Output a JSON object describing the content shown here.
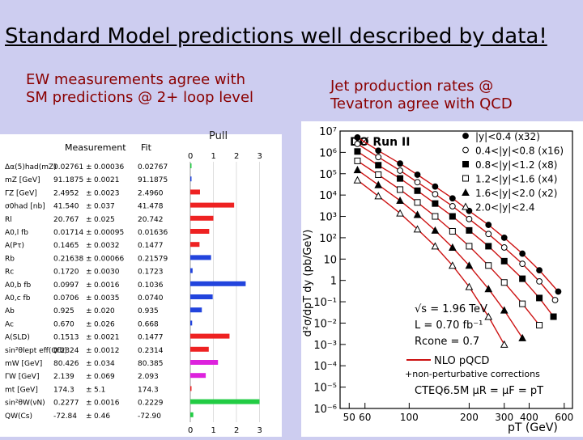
{
  "title": "Standard Model predictions well described by data!",
  "left_caption": [
    "EW measurements agree with",
    "SM predictions @ 2+ loop level"
  ],
  "right_caption": [
    "Jet production rates @",
    "Tevatron agree with QCD"
  ],
  "pull_label": "Pull",
  "ew_table": {
    "headers": {
      "measurement": "Measurement",
      "fit": "Fit"
    },
    "pull_axis_top": [
      "0",
      "1",
      "2",
      "3"
    ],
    "pull_axis_bottom": [
      "0",
      "1",
      "2",
      "3"
    ],
    "rows": [
      {
        "name": "Δα(5)had(mZ)",
        "meas": "0.02761",
        "pm": "±",
        "err": "0.00036",
        "fit": "0.02767",
        "pull": 0.05,
        "color": "#22cc44"
      },
      {
        "name": "mZ [GeV]",
        "meas": "91.1875",
        "pm": "±",
        "err": "0.0021",
        "fit": "91.1875",
        "pull": 0.05,
        "color": "#2244dd"
      },
      {
        "name": "ΓZ [GeV]",
        "meas": "2.4952",
        "pm": "±",
        "err": "0.0023",
        "fit": "2.4960",
        "pull": 0.42,
        "color": "#ee2222"
      },
      {
        "name": "σ0had [nb]",
        "meas": "41.540",
        "pm": "±",
        "err": "0.037",
        "fit": "41.478",
        "pull": 1.9,
        "color": "#ee2222"
      },
      {
        "name": "Rl",
        "meas": "20.767",
        "pm": "±",
        "err": "0.025",
        "fit": "20.742",
        "pull": 1.0,
        "color": "#ee2222"
      },
      {
        "name": "A0,l fb",
        "meas": "0.01714",
        "pm": "±",
        "err": "0.00095",
        "fit": "0.01636",
        "pull": 0.82,
        "color": "#ee2222"
      },
      {
        "name": "A(Pτ)",
        "meas": "0.1465",
        "pm": "±",
        "err": "0.0032",
        "fit": "0.1477",
        "pull": 0.4,
        "color": "#ee2222"
      },
      {
        "name": "Rb",
        "meas": "0.21638",
        "pm": "±",
        "err": "0.00066",
        "fit": "0.21579",
        "pull": 0.9,
        "color": "#2244dd"
      },
      {
        "name": "Rc",
        "meas": "0.1720",
        "pm": "±",
        "err": "0.0030",
        "fit": "0.1723",
        "pull": 0.1,
        "color": "#2244dd"
      },
      {
        "name": "A0,b fb",
        "meas": "0.0997",
        "pm": "±",
        "err": "0.0016",
        "fit": "0.1036",
        "pull": 2.4,
        "color": "#2244dd"
      },
      {
        "name": "A0,c fb",
        "meas": "0.0706",
        "pm": "±",
        "err": "0.0035",
        "fit": "0.0740",
        "pull": 0.97,
        "color": "#2244dd"
      },
      {
        "name": "Ab",
        "meas": "0.925",
        "pm": "±",
        "err": "0.020",
        "fit": "0.935",
        "pull": 0.5,
        "color": "#2244dd"
      },
      {
        "name": "Ac",
        "meas": "0.670",
        "pm": "±",
        "err": "0.026",
        "fit": "0.668",
        "pull": 0.08,
        "color": "#2244dd"
      },
      {
        "name": "A(SLD)",
        "meas": "0.1513",
        "pm": "±",
        "err": "0.0021",
        "fit": "0.1477",
        "pull": 1.7,
        "color": "#ee2222"
      },
      {
        "name": "sin²θlept eff(Qfb)",
        "meas": "0.2324",
        "pm": "±",
        "err": "0.0012",
        "fit": "0.2314",
        "pull": 0.8,
        "color": "#ee2222"
      },
      {
        "name": "mW [GeV]",
        "meas": "80.426",
        "pm": "±",
        "err": "0.034",
        "fit": "80.385",
        "pull": 1.2,
        "color": "#dd22dd"
      },
      {
        "name": "ΓW [GeV]",
        "meas": "2.139",
        "pm": "±",
        "err": "0.069",
        "fit": "2.093",
        "pull": 0.67,
        "color": "#dd22dd"
      },
      {
        "name": "mt [GeV]",
        "meas": "174.3",
        "pm": "±",
        "err": "5.1",
        "fit": "174.3",
        "pull": 0.0,
        "color": "#ee2222"
      },
      {
        "name": "sin²θW(νN)",
        "meas": "0.2277",
        "pm": "±",
        "err": "0.0016",
        "fit": "0.2229",
        "pull": 3.0,
        "color": "#22cc44"
      },
      {
        "name": "QW(Cs)",
        "meas": "-72.84",
        "pm": "±",
        "err": "0.46",
        "fit": "-72.90",
        "pull": 0.13,
        "color": "#22cc44"
      }
    ]
  },
  "chart_data": {
    "type": "scatter",
    "title": "DØ Run II",
    "ylabel": "d²σ/dpT dy (pb/GeV)",
    "xlabel": "pT (GeV)",
    "x_scale": "log",
    "y_scale": "log",
    "xlim": [
      45,
      660
    ],
    "ylim": [
      1e-06,
      10000000.0
    ],
    "x_ticks": [
      50,
      60,
      100,
      200,
      300,
      400,
      600
    ],
    "x_tick_labels": [
      "50",
      "60",
      "100",
      "200",
      "300",
      "400",
      "600"
    ],
    "y_ticks": [
      1e-06,
      1e-05,
      0.0001,
      0.001,
      0.01,
      0.1,
      1,
      10,
      100,
      1000,
      10000,
      100000,
      1000000,
      10000000
    ],
    "y_tick_labels": [
      "10⁻⁶",
      "10⁻⁵",
      "10⁻⁴",
      "10⁻³",
      "10⁻²",
      "10⁻¹",
      "1",
      "10",
      "10²",
      "10³",
      "10⁴",
      "10⁵",
      "10⁶",
      "10⁷"
    ],
    "series": [
      {
        "name": "|y|<0.4 (x32)",
        "marker": "filled-circle",
        "x": [
          55,
          70,
          90,
          110,
          135,
          165,
          200,
          250,
          300,
          370,
          450,
          560
        ],
        "y": [
          5000000,
          1200000,
          300000,
          90000,
          25000,
          7000,
          1800,
          400,
          100,
          18,
          3,
          0.3
        ]
      },
      {
        "name": "0.4<|y|<0.8 (x16)",
        "marker": "open-circle",
        "x": [
          55,
          70,
          90,
          110,
          135,
          165,
          200,
          250,
          300,
          370,
          450,
          540
        ],
        "y": [
          2500000,
          600000,
          140000,
          40000,
          11000,
          3000,
          750,
          150,
          35,
          6,
          0.9,
          0.12
        ]
      },
      {
        "name": "0.8<|y|<1.2 (x8)",
        "marker": "filled-square",
        "x": [
          55,
          70,
          90,
          110,
          135,
          165,
          200,
          250,
          300,
          370,
          450,
          530
        ],
        "y": [
          1100000,
          250000,
          60000,
          16000,
          4000,
          1000,
          220,
          40,
          8,
          1.2,
          0.15,
          0.02
        ]
      },
      {
        "name": "1.2<|y|<1.6 (x4)",
        "marker": "open-square",
        "x": [
          55,
          70,
          90,
          110,
          135,
          165,
          200,
          250,
          300,
          370,
          450
        ],
        "y": [
          400000,
          90000,
          18000,
          4500,
          1000,
          200,
          40,
          5,
          0.8,
          0.08,
          0.008
        ]
      },
      {
        "name": "1.6<|y|<2.0 (x2)",
        "marker": "filled-triangle",
        "x": [
          55,
          70,
          90,
          110,
          135,
          165,
          200,
          250,
          300,
          370
        ],
        "y": [
          150000,
          30000,
          5500,
          1200,
          220,
          35,
          5,
          0.4,
          0.04,
          0.002
        ]
      },
      {
        "name": "2.0<|y|<2.4",
        "marker": "open-triangle",
        "x": [
          55,
          70,
          90,
          110,
          135,
          165,
          200,
          250,
          300
        ],
        "y": [
          50000,
          9000,
          1400,
          250,
          40,
          5,
          0.5,
          0.02,
          0.001
        ]
      }
    ],
    "annotations": [
      "√s = 1.96 TeV",
      "L = 0.70 fb⁻¹",
      "Rcone = 0.7",
      "NLO pQCD",
      "+non-perturbative corrections",
      "CTEQ6.5M   μR = μF = pT"
    ]
  }
}
